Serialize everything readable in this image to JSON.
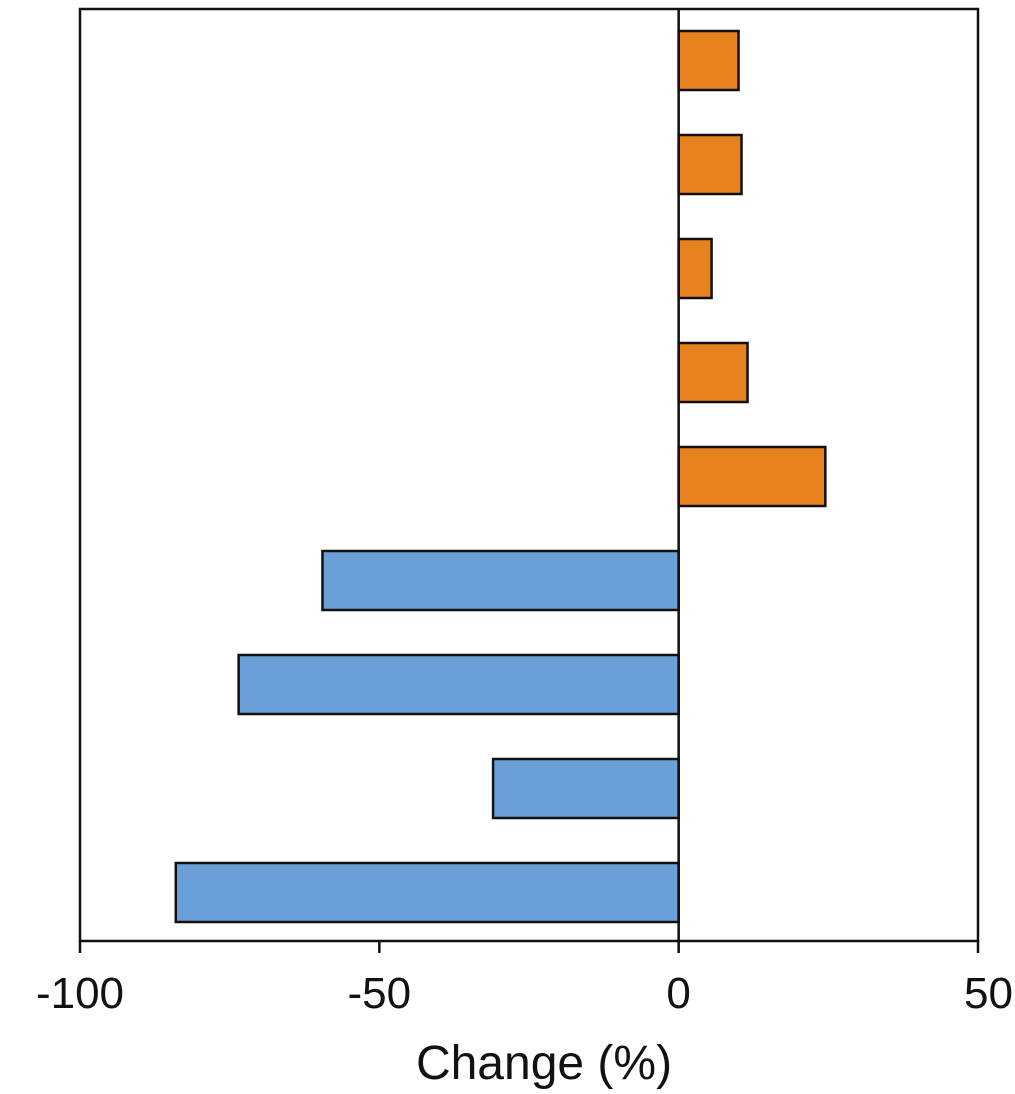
{
  "chart_data": {
    "type": "bar",
    "orientation": "horizontal",
    "title": "",
    "xlabel": "Change (%)",
    "ylabel": "",
    "xlim": [
      -100,
      50
    ],
    "xticks": [
      -100,
      -50,
      0,
      50
    ],
    "xtick_labels": [
      "-100",
      "-50",
      "0",
      "50"
    ],
    "grid": false,
    "legend": "none",
    "values": [
      10,
      10.5,
      5.5,
      11.5,
      24.5,
      -59.5,
      -73.5,
      -31,
      -84
    ],
    "colors": {
      "positive": "#e8821e",
      "negative": "#6a9fd8",
      "outline": "#111111",
      "axis": "#111111"
    }
  }
}
